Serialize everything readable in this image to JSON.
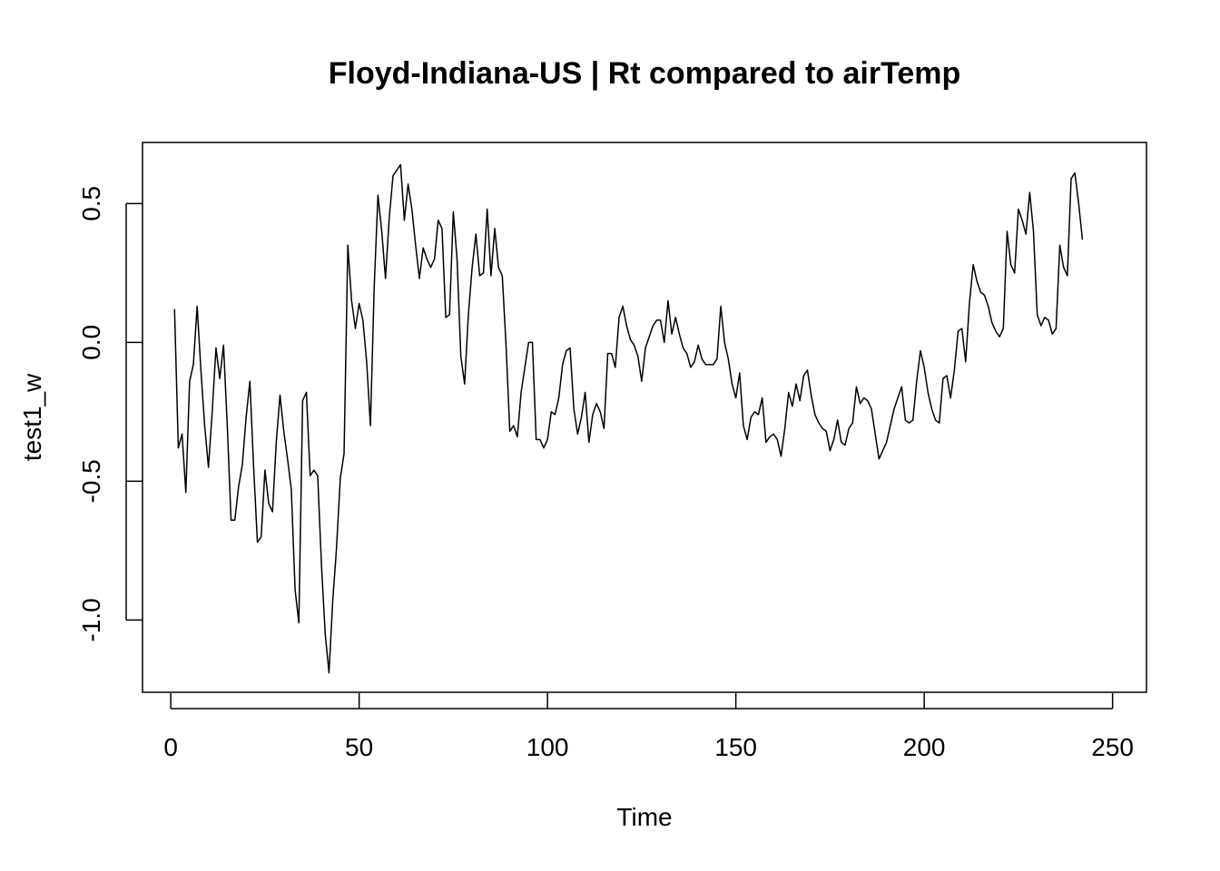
{
  "chart_data": {
    "type": "line",
    "title": "Floyd-Indiana-US | Rt compared to airTemp",
    "xlabel": "Time",
    "ylabel": "test1_w",
    "xlim": [
      -7.5,
      259
    ],
    "ylim": [
      -1.26,
      0.72
    ],
    "x_ticks": [
      0,
      50,
      100,
      150,
      200,
      250
    ],
    "x_tick_labels": [
      "0",
      "50",
      "100",
      "150",
      "200",
      "250"
    ],
    "y_ticks": [
      0.5,
      0.0,
      -0.5,
      -1.0
    ],
    "y_tick_labels": [
      "0.5",
      "0.0",
      "-0.5",
      "-1.0"
    ],
    "grid": false,
    "legend": "none",
    "series": [
      {
        "color": "#000000",
        "x_start": 1,
        "x_step": 1,
        "values": [
          0.12,
          -0.38,
          -0.33,
          -0.54,
          -0.14,
          -0.08,
          0.13,
          -0.1,
          -0.3,
          -0.45,
          -0.25,
          -0.02,
          -0.13,
          -0.01,
          -0.3,
          -0.64,
          -0.64,
          -0.52,
          -0.44,
          -0.27,
          -0.14,
          -0.45,
          -0.72,
          -0.7,
          -0.46,
          -0.58,
          -0.61,
          -0.36,
          -0.19,
          -0.32,
          -0.42,
          -0.53,
          -0.89,
          -1.01,
          -0.21,
          -0.18,
          -0.48,
          -0.46,
          -0.48,
          -0.8,
          -1.05,
          -1.19,
          -0.93,
          -0.74,
          -0.49,
          -0.4,
          0.35,
          0.15,
          0.05,
          0.14,
          0.08,
          -0.07,
          -0.3,
          0.2,
          0.53,
          0.4,
          0.23,
          0.45,
          0.6,
          0.62,
          0.64,
          0.44,
          0.57,
          0.48,
          0.35,
          0.23,
          0.34,
          0.3,
          0.27,
          0.3,
          0.44,
          0.41,
          0.09,
          0.1,
          0.47,
          0.3,
          -0.05,
          -0.15,
          0.1,
          0.27,
          0.39,
          0.24,
          0.25,
          0.48,
          0.24,
          0.41,
          0.27,
          0.24,
          -0.01,
          -0.32,
          -0.3,
          -0.34,
          -0.18,
          -0.09,
          0.0,
          0.0,
          -0.35,
          -0.35,
          -0.38,
          -0.35,
          -0.25,
          -0.26,
          -0.2,
          -0.08,
          -0.03,
          -0.02,
          -0.24,
          -0.33,
          -0.27,
          -0.18,
          -0.36,
          -0.26,
          -0.22,
          -0.25,
          -0.31,
          -0.04,
          -0.04,
          -0.09,
          0.09,
          0.13,
          0.06,
          0.01,
          -0.01,
          -0.05,
          -0.14,
          -0.02,
          0.02,
          0.06,
          0.08,
          0.08,
          0.0,
          0.15,
          0.03,
          0.09,
          0.03,
          -0.02,
          -0.04,
          -0.09,
          -0.07,
          -0.01,
          -0.06,
          -0.08,
          -0.08,
          -0.08,
          -0.06,
          0.13,
          0.0,
          -0.06,
          -0.15,
          -0.2,
          -0.11,
          -0.3,
          -0.35,
          -0.27,
          -0.25,
          -0.26,
          -0.2,
          -0.36,
          -0.34,
          -0.33,
          -0.35,
          -0.41,
          -0.31,
          -0.18,
          -0.23,
          -0.15,
          -0.21,
          -0.12,
          -0.1,
          -0.19,
          -0.26,
          -0.29,
          -0.31,
          -0.32,
          -0.39,
          -0.35,
          -0.28,
          -0.36,
          -0.37,
          -0.31,
          -0.29,
          -0.16,
          -0.22,
          -0.2,
          -0.21,
          -0.24,
          -0.33,
          -0.42,
          -0.39,
          -0.36,
          -0.3,
          -0.24,
          -0.2,
          -0.16,
          -0.28,
          -0.29,
          -0.28,
          -0.14,
          -0.03,
          -0.09,
          -0.18,
          -0.24,
          -0.28,
          -0.29,
          -0.13,
          -0.12,
          -0.2,
          -0.1,
          0.04,
          0.05,
          -0.07,
          0.14,
          0.28,
          0.22,
          0.18,
          0.17,
          0.13,
          0.07,
          0.04,
          0.02,
          0.05,
          0.4,
          0.28,
          0.25,
          0.48,
          0.44,
          0.39,
          0.54,
          0.4,
          0.1,
          0.06,
          0.09,
          0.08,
          0.03,
          0.05,
          0.35,
          0.27,
          0.24,
          0.59,
          0.61,
          0.5,
          0.37
        ]
      }
    ]
  }
}
